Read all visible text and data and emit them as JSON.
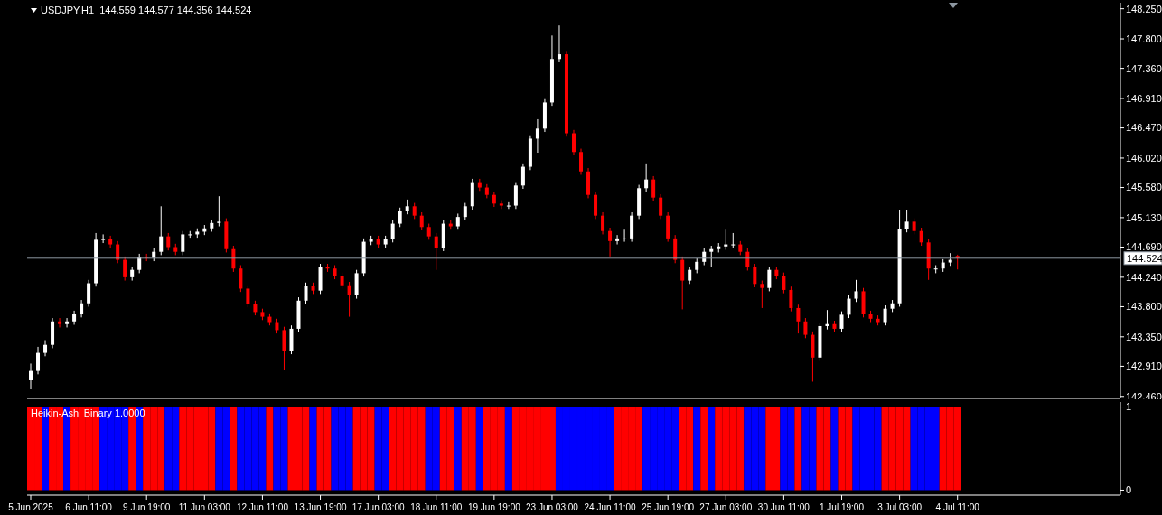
{
  "chart_data": [
    {
      "type": "candlestick",
      "title": "USDJPY,H1  144.559 144.577 144.356 144.524",
      "ohlc": [
        [
          142.7,
          142.95,
          142.57,
          142.84
        ],
        [
          142.84,
          143.2,
          142.79,
          143.11
        ],
        [
          143.11,
          143.3,
          143.06,
          143.23
        ],
        [
          143.23,
          143.63,
          143.18,
          143.58
        ],
        [
          143.58,
          143.63,
          143.49,
          143.54
        ],
        [
          143.54,
          143.63,
          143.49,
          143.58
        ],
        [
          143.58,
          143.74,
          143.53,
          143.69
        ],
        [
          143.69,
          143.9,
          143.64,
          143.85
        ],
        [
          143.85,
          144.2,
          143.8,
          144.15
        ],
        [
          144.15,
          144.9,
          144.1,
          144.8
        ],
        [
          144.8,
          144.88,
          144.75,
          144.81
        ],
        [
          144.81,
          144.86,
          144.68,
          144.73
        ],
        [
          144.73,
          144.78,
          144.45,
          144.5
        ],
        [
          144.5,
          144.55,
          144.19,
          144.24
        ],
        [
          144.24,
          144.4,
          144.19,
          144.35
        ],
        [
          144.35,
          144.59,
          144.3,
          144.54
        ],
        [
          144.54,
          144.59,
          144.48,
          144.53
        ],
        [
          144.53,
          144.67,
          144.48,
          144.62
        ],
        [
          144.62,
          145.3,
          144.57,
          144.85
        ],
        [
          144.85,
          144.9,
          144.64,
          144.69
        ],
        [
          144.69,
          144.74,
          144.57,
          144.62
        ],
        [
          144.62,
          144.93,
          144.57,
          144.88
        ],
        [
          144.88,
          144.93,
          144.83,
          144.88
        ],
        [
          144.88,
          144.97,
          144.83,
          144.92
        ],
        [
          144.92,
          145.02,
          144.87,
          144.97
        ],
        [
          144.97,
          145.1,
          144.92,
          145.05
        ],
        [
          145.05,
          145.45,
          145.0,
          145.07
        ],
        [
          145.07,
          145.12,
          144.61,
          144.66
        ],
        [
          144.66,
          144.71,
          144.32,
          144.37
        ],
        [
          144.37,
          144.42,
          144.02,
          144.07
        ],
        [
          144.07,
          144.12,
          143.79,
          143.84
        ],
        [
          143.84,
          143.89,
          143.67,
          143.72
        ],
        [
          143.72,
          143.77,
          143.6,
          143.65
        ],
        [
          143.65,
          143.7,
          143.52,
          143.57
        ],
        [
          143.57,
          143.62,
          143.4,
          143.45
        ],
        [
          143.45,
          143.5,
          142.85,
          143.14
        ],
        [
          143.14,
          143.52,
          143.09,
          143.47
        ],
        [
          143.47,
          143.94,
          143.42,
          143.89
        ],
        [
          143.89,
          144.16,
          143.84,
          144.11
        ],
        [
          144.11,
          144.16,
          143.99,
          144.04
        ],
        [
          144.04,
          144.44,
          143.99,
          144.39
        ],
        [
          144.39,
          144.44,
          144.32,
          144.37
        ],
        [
          144.37,
          144.42,
          144.21,
          144.26
        ],
        [
          144.26,
          144.31,
          144.07,
          144.12
        ],
        [
          144.12,
          144.17,
          143.65,
          143.97
        ],
        [
          143.97,
          144.35,
          143.92,
          144.3
        ],
        [
          144.3,
          144.82,
          144.25,
          144.77
        ],
        [
          144.77,
          144.86,
          144.72,
          144.81
        ],
        [
          144.81,
          144.86,
          144.68,
          144.73
        ],
        [
          144.73,
          144.86,
          144.68,
          144.81
        ],
        [
          144.81,
          145.09,
          144.76,
          145.04
        ],
        [
          145.04,
          145.28,
          144.99,
          145.23
        ],
        [
          145.23,
          145.4,
          145.18,
          145.3
        ],
        [
          145.3,
          145.35,
          145.11,
          145.16
        ],
        [
          145.16,
          145.21,
          144.94,
          144.99
        ],
        [
          144.99,
          145.04,
          144.8,
          144.85
        ],
        [
          144.85,
          144.9,
          144.35,
          144.68
        ],
        [
          144.68,
          145.09,
          144.63,
          145.04
        ],
        [
          145.04,
          145.09,
          144.95,
          145.0
        ],
        [
          145.0,
          145.19,
          144.95,
          145.14
        ],
        [
          145.14,
          145.35,
          145.09,
          145.3
        ],
        [
          145.3,
          145.71,
          145.25,
          145.66
        ],
        [
          145.66,
          145.71,
          145.53,
          145.58
        ],
        [
          145.58,
          145.63,
          145.42,
          145.47
        ],
        [
          145.47,
          145.52,
          145.29,
          145.34
        ],
        [
          145.34,
          145.39,
          145.26,
          145.31
        ],
        [
          145.31,
          145.36,
          145.26,
          145.31
        ],
        [
          145.31,
          145.66,
          145.26,
          145.61
        ],
        [
          145.61,
          145.94,
          145.56,
          145.89
        ],
        [
          145.89,
          146.36,
          145.84,
          146.31
        ],
        [
          146.31,
          146.6,
          146.1,
          146.46
        ],
        [
          146.46,
          146.9,
          146.41,
          146.85
        ],
        [
          146.85,
          147.85,
          146.8,
          147.5
        ],
        [
          147.5,
          148.0,
          147.45,
          147.57
        ],
        [
          147.57,
          147.62,
          146.34,
          146.39
        ],
        [
          146.39,
          146.44,
          146.06,
          146.11
        ],
        [
          146.11,
          146.16,
          145.77,
          145.82
        ],
        [
          145.82,
          145.87,
          145.42,
          145.47
        ],
        [
          145.47,
          145.52,
          145.11,
          145.16
        ],
        [
          145.16,
          145.21,
          144.88,
          144.93
        ],
        [
          144.93,
          144.98,
          144.55,
          144.78
        ],
        [
          144.78,
          144.87,
          144.73,
          144.82
        ],
        [
          144.82,
          144.95,
          144.77,
          144.82
        ],
        [
          144.82,
          145.21,
          144.77,
          145.16
        ],
        [
          145.16,
          145.62,
          145.11,
          145.57
        ],
        [
          145.57,
          145.94,
          145.52,
          145.7
        ],
        [
          145.7,
          145.75,
          145.38,
          145.43
        ],
        [
          145.43,
          145.48,
          145.11,
          145.16
        ],
        [
          145.16,
          145.21,
          144.77,
          144.82
        ],
        [
          144.82,
          144.87,
          144.45,
          144.5
        ],
        [
          144.5,
          144.55,
          143.76,
          144.19
        ],
        [
          144.19,
          144.4,
          144.14,
          144.35
        ],
        [
          144.35,
          144.52,
          144.3,
          144.47
        ],
        [
          144.47,
          144.67,
          144.42,
          144.62
        ],
        [
          144.62,
          144.71,
          144.4,
          144.66
        ],
        [
          144.66,
          144.75,
          144.61,
          144.7
        ],
        [
          144.7,
          144.95,
          144.65,
          144.73
        ],
        [
          144.73,
          144.9,
          144.68,
          144.73
        ],
        [
          144.73,
          144.78,
          144.57,
          144.62
        ],
        [
          144.62,
          144.67,
          144.34,
          144.39
        ],
        [
          144.39,
          144.44,
          144.09,
          144.14
        ],
        [
          144.14,
          144.19,
          143.78,
          144.08
        ],
        [
          144.08,
          144.4,
          144.03,
          144.35
        ],
        [
          144.35,
          144.4,
          144.21,
          144.26
        ],
        [
          144.26,
          144.31,
          144.0,
          144.05
        ],
        [
          144.05,
          144.1,
          143.73,
          143.78
        ],
        [
          143.78,
          143.83,
          143.4,
          143.58
        ],
        [
          143.58,
          143.63,
          143.33,
          143.38
        ],
        [
          143.38,
          143.43,
          142.68,
          143.04
        ],
        [
          143.04,
          143.56,
          142.99,
          143.51
        ],
        [
          143.51,
          143.75,
          143.46,
          143.54
        ],
        [
          143.54,
          143.59,
          143.42,
          143.47
        ],
        [
          143.47,
          143.73,
          143.42,
          143.68
        ],
        [
          143.68,
          143.97,
          143.63,
          143.92
        ],
        [
          143.92,
          144.2,
          143.87,
          144.03
        ],
        [
          144.03,
          144.08,
          143.64,
          143.69
        ],
        [
          143.69,
          143.74,
          143.57,
          143.62
        ],
        [
          143.62,
          143.67,
          143.52,
          143.57
        ],
        [
          143.57,
          143.82,
          143.52,
          143.77
        ],
        [
          143.77,
          143.9,
          143.72,
          143.85
        ],
        [
          143.85,
          145.25,
          143.8,
          144.96
        ],
        [
          144.96,
          145.25,
          144.91,
          145.07
        ],
        [
          145.07,
          145.12,
          144.88,
          144.93
        ],
        [
          144.93,
          144.98,
          144.71,
          144.76
        ],
        [
          144.76,
          144.81,
          144.2,
          144.37
        ],
        [
          144.37,
          144.42,
          144.3,
          144.37
        ],
        [
          144.37,
          144.51,
          144.32,
          144.46
        ],
        [
          144.46,
          144.6,
          144.41,
          144.5
        ],
        [
          144.559,
          144.577,
          144.356,
          144.524
        ],
        null,
        null,
        null,
        null,
        null,
        null,
        null,
        null,
        null,
        null,
        null,
        null,
        null,
        null,
        null,
        null,
        null,
        null,
        null,
        null,
        null,
        null
      ],
      "colors": [
        "#ffffff",
        "#ffffff",
        "#ffffff",
        "#ffffff",
        "#ff0000",
        "#ffffff",
        "#ffffff",
        "#ffffff",
        "#ffffff",
        "#ffffff",
        "#ffffff",
        "#ff0000",
        "#ff0000",
        "#ff0000",
        "#ffffff",
        "#ffffff",
        "#ff0000",
        "#ffffff",
        "#ffffff",
        "#ff0000",
        "#ff0000",
        "#ffffff",
        "#ffffff",
        "#ffffff",
        "#ffffff",
        "#ffffff",
        "#ffffff",
        "#ff0000",
        "#ff0000",
        "#ff0000",
        "#ff0000",
        "#ff0000",
        "#ff0000",
        "#ff0000",
        "#ff0000",
        "#ff0000",
        "#ffffff",
        "#ffffff",
        "#ffffff",
        "#ff0000",
        "#ffffff",
        "#ff0000",
        "#ff0000",
        "#ff0000",
        "#ff0000",
        "#ffffff",
        "#ffffff",
        "#ffffff",
        "#ff0000",
        "#ffffff",
        "#ffffff",
        "#ffffff",
        "#ffffff",
        "#ff0000",
        "#ff0000",
        "#ff0000",
        "#ff0000",
        "#ffffff",
        "#ff0000",
        "#ffffff",
        "#ffffff",
        "#ffffff",
        "#ff0000",
        "#ff0000",
        "#ff0000",
        "#ff0000",
        "#ffffff",
        "#ffffff",
        "#ffffff",
        "#ffffff",
        "#ffffff",
        "#ffffff",
        "#ffffff",
        "#ffffff",
        "#ff0000",
        "#ff0000",
        "#ff0000",
        "#ff0000",
        "#ff0000",
        "#ff0000",
        "#ff0000",
        "#ffffff",
        "#ffffff",
        "#ffffff",
        "#ffffff",
        "#ffffff",
        "#ff0000",
        "#ff0000",
        "#ff0000",
        "#ff0000",
        "#ff0000",
        "#ffffff",
        "#ffffff",
        "#ffffff",
        "#ffffff",
        "#ffffff",
        "#ffffff",
        "#ffffff",
        "#ff0000",
        "#ff0000",
        "#ff0000",
        "#ff0000",
        "#ffffff",
        "#ff0000",
        "#ff0000",
        "#ff0000",
        "#ff0000",
        "#ff0000",
        "#ff0000",
        "#ffffff",
        "#ffffff",
        "#ff0000",
        "#ffffff",
        "#ffffff",
        "#ffffff",
        "#ff0000",
        "#ff0000",
        "#ff0000",
        "#ffffff",
        "#ffffff",
        "#ffffff",
        "#ffffff",
        "#ff0000",
        "#ff0000",
        "#ff0000",
        "#ffffff",
        "#ffffff",
        "#ffffff",
        "#ff0000",
        null,
        null,
        null,
        null,
        null,
        null,
        null,
        null,
        null,
        null,
        null,
        null,
        null,
        null,
        null,
        null,
        null,
        null,
        null,
        null,
        null,
        null
      ],
      "ylim": [
        142.43,
        148.34
      ],
      "yticks": [
        {
          "value": 148.25,
          "label": "148.250"
        },
        {
          "value": 147.8,
          "label": "147.800"
        },
        {
          "value": 147.36,
          "label": "147.360"
        },
        {
          "value": 146.91,
          "label": "146.910"
        },
        {
          "value": 146.47,
          "label": "146.470"
        },
        {
          "value": 146.02,
          "label": "146.020"
        },
        {
          "value": 145.58,
          "label": "145.580"
        },
        {
          "value": 145.13,
          "label": "145.130"
        },
        {
          "value": 144.69,
          "label": "144.690"
        },
        {
          "value": 144.24,
          "label": "144.240"
        },
        {
          "value": 143.8,
          "label": "143.800"
        },
        {
          "value": 143.35,
          "label": "143.350"
        },
        {
          "value": 142.91,
          "label": "142.910"
        },
        {
          "value": 142.46,
          "label": "142.460"
        }
      ],
      "ref_lines": [
        {
          "axis": "y",
          "value": 144.524,
          "label": "144.524",
          "color": "#8c96a0"
        }
      ],
      "tick_labels": "y"
    },
    {
      "type": "bar",
      "title": "Heikin-Ashi Binary 1.0000",
      "categories": [
        "5 Jun 2025",
        null,
        null,
        null,
        null,
        null,
        null,
        null,
        "6 Jun 11:00",
        null,
        null,
        null,
        null,
        null,
        null,
        null,
        "9 Jun 19:00",
        null,
        null,
        null,
        null,
        null,
        null,
        null,
        "11 Jun 03:00",
        null,
        null,
        null,
        null,
        null,
        null,
        null,
        "12 Jun 11:00",
        null,
        null,
        null,
        null,
        null,
        null,
        null,
        "13 Jun 19:00",
        null,
        null,
        null,
        null,
        null,
        null,
        null,
        "17 Jun 03:00",
        null,
        null,
        null,
        null,
        null,
        null,
        null,
        "18 Jun 11:00",
        null,
        null,
        null,
        null,
        null,
        null,
        null,
        "19 Jun 19:00",
        null,
        null,
        null,
        null,
        null,
        null,
        null,
        "23 Jun 03:00",
        null,
        null,
        null,
        null,
        null,
        null,
        null,
        "24 Jun 11:00",
        null,
        null,
        null,
        null,
        null,
        null,
        null,
        "25 Jun 19:00",
        null,
        null,
        null,
        null,
        null,
        null,
        null,
        "27 Jun 03:00",
        null,
        null,
        null,
        null,
        null,
        null,
        null,
        "30 Jun 11:00",
        null,
        null,
        null,
        null,
        null,
        null,
        null,
        "1 Jul 19:00",
        null,
        null,
        null,
        null,
        null,
        null,
        null,
        "3 Jul 03:00",
        null,
        null,
        null,
        null,
        null,
        null,
        null,
        "4 Jul 11:00",
        null,
        null,
        null,
        null,
        null,
        null,
        null,
        null,
        null,
        null,
        null,
        null,
        null,
        null,
        null,
        null,
        null,
        null,
        null,
        null,
        null,
        null
      ],
      "values": [
        1,
        1,
        1,
        1,
        1,
        1,
        1,
        1,
        1,
        1,
        1,
        1,
        1,
        1,
        1,
        1,
        1,
        1,
        1,
        1,
        1,
        1,
        1,
        1,
        1,
        1,
        1,
        1,
        1,
        1,
        1,
        1,
        1,
        1,
        1,
        1,
        1,
        1,
        1,
        1,
        1,
        1,
        1,
        1,
        1,
        1,
        1,
        1,
        1,
        1,
        1,
        1,
        1,
        1,
        1,
        1,
        1,
        1,
        1,
        1,
        1,
        1,
        1,
        1,
        1,
        1,
        1,
        1,
        1,
        1,
        1,
        1,
        1,
        1,
        1,
        1,
        1,
        1,
        1,
        1,
        1,
        1,
        1,
        1,
        1,
        1,
        1,
        1,
        1,
        1,
        1,
        1,
        1,
        1,
        1,
        1,
        1,
        1,
        1,
        1,
        1,
        1,
        1,
        1,
        1,
        1,
        1,
        1,
        1,
        1,
        1,
        1,
        1,
        1,
        1,
        1,
        1,
        1,
        1,
        1,
        1,
        1,
        1,
        1,
        1,
        1,
        1,
        1,
        1,
        null,
        null,
        null,
        null,
        null,
        null,
        null,
        null,
        null,
        null,
        null,
        null,
        null,
        null,
        null,
        null,
        null,
        null,
        null,
        null,
        null,
        null
      ],
      "colors": [
        "#ff0000",
        "#ff0000",
        "#0000ff",
        "#ff0000",
        "#ff0000",
        "#0000ff",
        "#ff0000",
        "#ff0000",
        "#ff0000",
        "#ff0000",
        "#0000ff",
        "#0000ff",
        "#0000ff",
        "#0000ff",
        "#ff0000",
        "#0000ff",
        "#ff0000",
        "#ff0000",
        "#ff0000",
        "#0000ff",
        "#0000ff",
        "#ff0000",
        "#ff0000",
        "#ff0000",
        "#ff0000",
        "#ff0000",
        "#0000ff",
        "#0000ff",
        "#ff0000",
        "#0000ff",
        "#0000ff",
        "#0000ff",
        "#0000ff",
        "#ff0000",
        "#0000ff",
        "#0000ff",
        "#ff0000",
        "#ff0000",
        "#ff0000",
        "#0000ff",
        "#ff0000",
        "#ff0000",
        "#0000ff",
        "#0000ff",
        "#0000ff",
        "#ff0000",
        "#ff0000",
        "#ff0000",
        "#0000ff",
        "#0000ff",
        "#ff0000",
        "#ff0000",
        "#ff0000",
        "#ff0000",
        "#ff0000",
        "#0000ff",
        "#0000ff",
        "#ff0000",
        "#ff0000",
        "#0000ff",
        "#ff0000",
        "#ff0000",
        "#0000ff",
        "#ff0000",
        "#ff0000",
        "#ff0000",
        "#0000ff",
        "#ff0000",
        "#ff0000",
        "#ff0000",
        "#ff0000",
        "#ff0000",
        "#ff0000",
        "#0000ff",
        "#0000ff",
        "#0000ff",
        "#0000ff",
        "#0000ff",
        "#0000ff",
        "#0000ff",
        "#0000ff",
        "#ff0000",
        "#ff0000",
        "#ff0000",
        "#ff0000",
        "#0000ff",
        "#0000ff",
        "#0000ff",
        "#0000ff",
        "#0000ff",
        "#ff0000",
        "#ff0000",
        "#0000ff",
        "#ff0000",
        "#0000ff",
        "#ff0000",
        "#ff0000",
        "#ff0000",
        "#ff0000",
        "#0000ff",
        "#0000ff",
        "#0000ff",
        "#ff0000",
        "#ff0000",
        "#0000ff",
        "#0000ff",
        "#ff0000",
        "#0000ff",
        "#0000ff",
        "#ff0000",
        "#ff0000",
        "#0000ff",
        "#ff0000",
        "#ff0000",
        "#0000ff",
        "#0000ff",
        "#0000ff",
        "#0000ff",
        "#ff0000",
        "#ff0000",
        "#ff0000",
        "#ff0000",
        "#0000ff",
        "#0000ff",
        "#0000ff",
        "#0000ff",
        "#ff0000",
        "#ff0000",
        "#ff0000",
        null,
        null,
        null,
        null,
        null,
        null,
        null,
        null,
        null,
        null,
        null,
        null,
        null,
        null,
        null,
        null,
        null,
        null,
        null,
        null,
        null,
        null
      ],
      "ylim": [
        -0.06,
        1.06
      ],
      "yticks": [
        0,
        1
      ]
    }
  ]
}
